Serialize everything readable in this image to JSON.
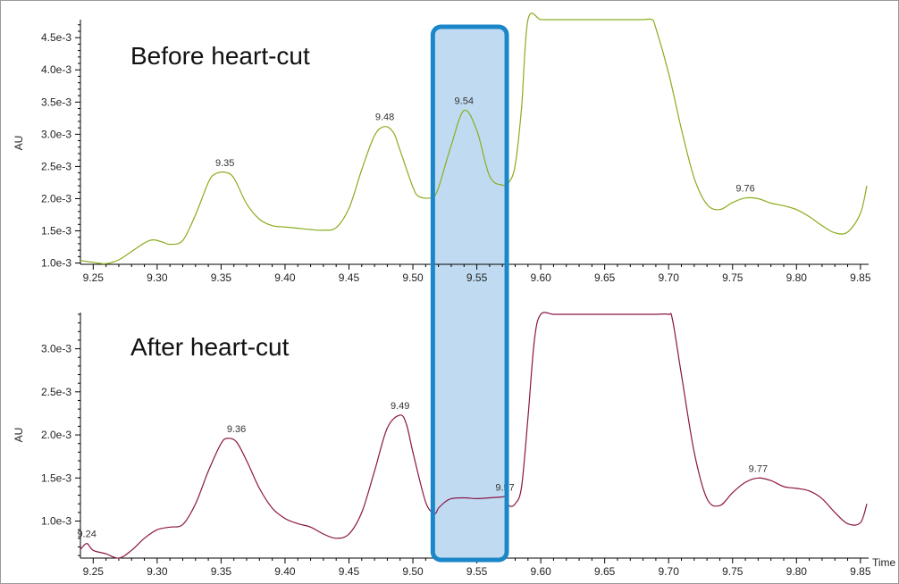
{
  "chart_data": [
    {
      "type": "line",
      "title": "Before heart-cut",
      "xlabel": "",
      "ylabel": "AU",
      "xlim": [
        9.24,
        9.855
      ],
      "ylim": [
        0.00098,
        0.00478
      ],
      "x_ticks": [
        9.25,
        9.3,
        9.35,
        9.4,
        9.45,
        9.5,
        9.55,
        9.6,
        9.65,
        9.7,
        9.75,
        9.8,
        9.85
      ],
      "x_tick_labels": [
        "9.25",
        "9.30",
        "9.35",
        "9.40",
        "9.45",
        "9.50",
        "9.55",
        "9.60",
        "9.65",
        "9.70",
        "9.75",
        "9.80",
        "9.85"
      ],
      "y_ticks": [
        0.001,
        0.0015,
        0.002,
        0.0025,
        0.003,
        0.0035,
        0.004,
        0.0045
      ],
      "y_tick_labels": [
        "1.0e-3",
        "1.5e-3",
        "2.0e-3",
        "2.5e-3",
        "3.0e-3",
        "3.5e-3",
        "4.0e-3",
        "4.5e-3"
      ],
      "series": [
        {
          "color": "#8aac1e",
          "x": [
            9.24,
            9.25,
            9.26,
            9.27,
            9.28,
            9.29,
            9.297,
            9.305,
            9.31,
            9.32,
            9.33,
            9.34,
            9.345,
            9.353,
            9.36,
            9.37,
            9.38,
            9.39,
            9.4,
            9.41,
            9.42,
            9.43,
            9.44,
            9.45,
            9.46,
            9.47,
            9.478,
            9.485,
            9.49,
            9.5,
            9.505,
            9.515,
            9.52,
            9.53,
            9.54,
            9.55,
            9.56,
            9.57,
            9.575,
            9.58,
            9.585,
            9.59,
            9.6,
            9.61,
            9.62,
            9.63,
            9.64,
            9.65,
            9.66,
            9.67,
            9.68,
            9.687,
            9.69,
            9.7,
            9.71,
            9.72,
            9.73,
            9.74,
            9.75,
            9.76,
            9.77,
            9.78,
            9.79,
            9.8,
            9.81,
            9.82,
            9.83,
            9.84,
            9.85,
            9.855
          ],
          "y": [
            0.00104,
            0.00101,
            0.00099,
            0.00105,
            0.00118,
            0.00131,
            0.00136,
            0.00132,
            0.00129,
            0.00135,
            0.00175,
            0.00225,
            0.00238,
            0.00241,
            0.00232,
            0.00192,
            0.00168,
            0.00158,
            0.00156,
            0.00154,
            0.00152,
            0.00151,
            0.00155,
            0.00185,
            0.00245,
            0.00298,
            0.00312,
            0.00302,
            0.00275,
            0.00218,
            0.00203,
            0.00202,
            0.00217,
            0.00283,
            0.00337,
            0.00306,
            0.00235,
            0.00221,
            0.00225,
            0.00252,
            0.00342,
            0.00478,
            0.00478,
            0.00478,
            0.00478,
            0.00478,
            0.00478,
            0.00478,
            0.00478,
            0.00478,
            0.00478,
            0.00478,
            0.00465,
            0.00395,
            0.00308,
            0.00232,
            0.00191,
            0.00183,
            0.00194,
            0.00201,
            0.002,
            0.00193,
            0.00189,
            0.00183,
            0.00172,
            0.00158,
            0.00147,
            0.00148,
            0.00177,
            0.0022
          ]
        }
      ],
      "annotations": [
        {
          "text": "9.35",
          "x": 9.353,
          "y": 0.00241
        },
        {
          "text": "9.48",
          "x": 9.478,
          "y": 0.00312
        },
        {
          "text": "9.54",
          "x": 9.54,
          "y": 0.00337
        },
        {
          "text": "9.76",
          "x": 9.76,
          "y": 0.00201
        }
      ]
    },
    {
      "type": "line",
      "title": "After heart-cut",
      "xlabel": "Time",
      "ylabel": "AU",
      "xlim": [
        9.24,
        9.855
      ],
      "ylim": [
        0.00057,
        0.0034
      ],
      "x_ticks": [
        9.25,
        9.3,
        9.35,
        9.4,
        9.45,
        9.5,
        9.55,
        9.6,
        9.65,
        9.7,
        9.75,
        9.8,
        9.85
      ],
      "x_tick_labels": [
        "9.25",
        "9.30",
        "9.35",
        "9.40",
        "9.45",
        "9.50",
        "9.55",
        "9.60",
        "9.65",
        "9.70",
        "9.75",
        "9.80",
        "9.85"
      ],
      "y_ticks": [
        0.001,
        0.0015,
        0.002,
        0.0025,
        0.003
      ],
      "y_tick_labels": [
        "1.0e-3",
        "1.5e-3",
        "2.0e-3",
        "2.5e-3",
        "3.0e-3"
      ],
      "series": [
        {
          "color": "#8a1544",
          "x": [
            9.24,
            9.245,
            9.25,
            9.26,
            9.27,
            9.28,
            9.29,
            9.3,
            9.31,
            9.32,
            9.33,
            9.34,
            9.35,
            9.355,
            9.362,
            9.37,
            9.38,
            9.39,
            9.4,
            9.41,
            9.42,
            9.43,
            9.44,
            9.45,
            9.46,
            9.47,
            9.48,
            9.49,
            9.495,
            9.5,
            9.51,
            9.517,
            9.52,
            9.525,
            9.53,
            9.54,
            9.55,
            9.56,
            9.57,
            9.572,
            9.575,
            9.58,
            9.585,
            9.59,
            9.595,
            9.6,
            9.61,
            9.62,
            9.63,
            9.64,
            9.65,
            9.66,
            9.67,
            9.68,
            9.69,
            9.7,
            9.703,
            9.71,
            9.72,
            9.73,
            9.74,
            9.75,
            9.76,
            9.77,
            9.78,
            9.79,
            9.8,
            9.81,
            9.82,
            9.83,
            9.84,
            9.85,
            9.855
          ],
          "y": [
            0.00067,
            0.00074,
            0.00066,
            0.00062,
            0.00057,
            0.00066,
            0.0008,
            0.0009,
            0.00093,
            0.00096,
            0.0012,
            0.00158,
            0.0019,
            0.00196,
            0.00192,
            0.0017,
            0.00138,
            0.00115,
            0.00103,
            0.00097,
            0.00093,
            0.00085,
            0.0008,
            0.00085,
            0.0011,
            0.00158,
            0.00208,
            0.00223,
            0.00212,
            0.0018,
            0.00122,
            0.00109,
            0.00115,
            0.00122,
            0.00126,
            0.00127,
            0.00126,
            0.00127,
            0.00128,
            0.00128,
            0.00118,
            0.0012,
            0.0014,
            0.0022,
            0.0031,
            0.0034,
            0.0034,
            0.0034,
            0.0034,
            0.0034,
            0.0034,
            0.0034,
            0.0034,
            0.0034,
            0.0034,
            0.0034,
            0.00334,
            0.0027,
            0.0018,
            0.00126,
            0.00118,
            0.00133,
            0.00145,
            0.0015,
            0.00147,
            0.0014,
            0.00138,
            0.00135,
            0.00126,
            0.0011,
            0.00097,
            0.00098,
            0.0012
          ]
        }
      ],
      "annotations": [
        {
          "text": "9.24",
          "x": 9.245,
          "y": 0.00074
        },
        {
          "text": "9.36",
          "x": 9.362,
          "y": 0.00196
        },
        {
          "text": "9.49",
          "x": 9.49,
          "y": 0.00223
        },
        {
          "text": "9.57",
          "x": 9.572,
          "y": 0.00128
        },
        {
          "text": "9.77",
          "x": 9.77,
          "y": 0.0015
        }
      ]
    }
  ],
  "highlight_box": {
    "x_start": 9.517,
    "x_end": 9.572,
    "fill": "#b9d7f0",
    "stroke": "#1b86c8"
  }
}
